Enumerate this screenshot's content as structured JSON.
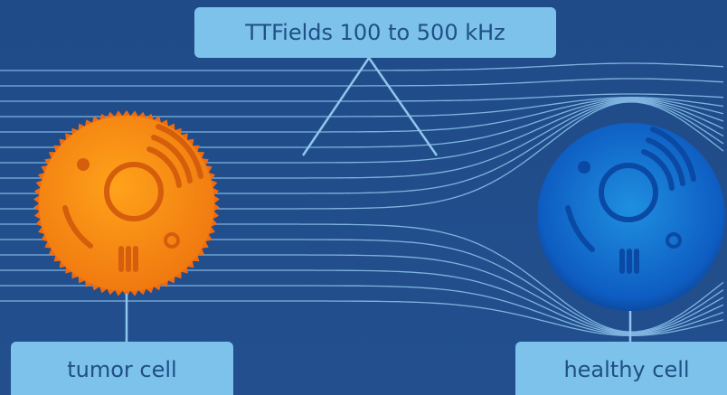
{
  "labels": {
    "title": "TTFields 100 to 500 kHz",
    "tumor": "tumor cell",
    "healthy": "healthy cell"
  }
}
